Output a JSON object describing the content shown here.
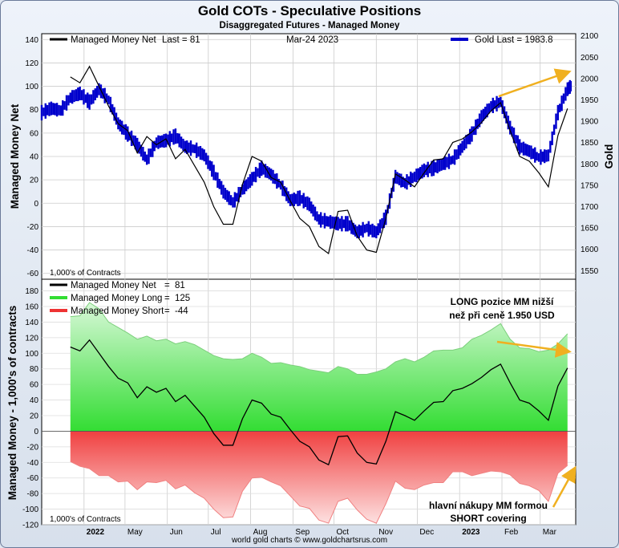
{
  "header": {
    "title": "Gold COTs - Speculative Positions",
    "subtitle": "Disaggregated Futures - Managed Money",
    "footer": "world gold charts © www.goldchartsrus.com"
  },
  "colors": {
    "net": "#000000",
    "gold": "#0000cc",
    "long": "#33dd33",
    "short": "#ee3333",
    "arrow": "#f0b020",
    "background": "#ffffff"
  },
  "chart_data": [
    {
      "type": "line",
      "title": "",
      "legend": [
        {
          "label": "Managed Money Net",
          "last_label": "Last = 81"
        },
        {
          "label": "Gold Last = 1983.8"
        }
      ],
      "date_label": "Mar-24  2023",
      "ylabel": "Managed Money Net",
      "y2label": "Gold",
      "units_note": "1,000's of Contracts",
      "ylim": [
        -65,
        145
      ],
      "y_ticks": [
        140,
        120,
        100,
        80,
        60,
        40,
        20,
        0,
        -20,
        -40,
        -60
      ],
      "y2lim": [
        1530,
        2105
      ],
      "y2_ticks": [
        2100,
        2050,
        2000,
        1950,
        1900,
        1850,
        1800,
        1750,
        1700,
        1650,
        1600,
        1550
      ],
      "series": [
        {
          "name": "Managed Money Net",
          "x": [
            "2022-03-22",
            "2022-03-29",
            "2022-04-05",
            "2022-04-12",
            "2022-04-19",
            "2022-04-26",
            "2022-05-03",
            "2022-05-10",
            "2022-05-17",
            "2022-05-24",
            "2022-05-31",
            "2022-06-07",
            "2022-06-14",
            "2022-06-21",
            "2022-06-28",
            "2022-07-05",
            "2022-07-12",
            "2022-07-19",
            "2022-07-26",
            "2022-08-02",
            "2022-08-09",
            "2022-08-16",
            "2022-08-23",
            "2022-08-30",
            "2022-09-06",
            "2022-09-13",
            "2022-09-20",
            "2022-09-27",
            "2022-10-04",
            "2022-10-11",
            "2022-10-18",
            "2022-10-25",
            "2022-11-01",
            "2022-11-08",
            "2022-11-15",
            "2022-11-22",
            "2022-11-29",
            "2022-12-06",
            "2022-12-13",
            "2022-12-20",
            "2022-12-27",
            "2023-01-03",
            "2023-01-10",
            "2023-01-17",
            "2023-01-24",
            "2023-01-31",
            "2023-02-07",
            "2023-02-14",
            "2023-02-21",
            "2023-02-28",
            "2023-03-07",
            "2023-03-14",
            "2023-03-21"
          ],
          "values": [
            108,
            103,
            117,
            100,
            83,
            68,
            62,
            43,
            57,
            50,
            55,
            38,
            46,
            32,
            18,
            -3,
            -18,
            -18,
            16,
            40,
            36,
            22,
            18,
            2,
            -13,
            -20,
            -37,
            -43,
            -7,
            -6,
            -28,
            -40,
            -42,
            -13,
            25,
            20,
            14,
            26,
            37,
            38,
            52,
            55,
            61,
            69,
            79,
            86,
            62,
            40,
            36,
            26,
            14,
            58,
            81
          ]
        },
        {
          "name": "Gold",
          "x": [
            "2022-03-01",
            "2022-03-08",
            "2022-03-15",
            "2022-03-22",
            "2022-03-29",
            "2022-04-05",
            "2022-04-12",
            "2022-04-19",
            "2022-04-26",
            "2022-05-03",
            "2022-05-10",
            "2022-05-17",
            "2022-05-24",
            "2022-05-31",
            "2022-06-07",
            "2022-06-14",
            "2022-06-21",
            "2022-06-28",
            "2022-07-05",
            "2022-07-12",
            "2022-07-19",
            "2022-07-26",
            "2022-08-02",
            "2022-08-09",
            "2022-08-16",
            "2022-08-23",
            "2022-08-30",
            "2022-09-06",
            "2022-09-13",
            "2022-09-20",
            "2022-09-27",
            "2022-10-04",
            "2022-10-11",
            "2022-10-18",
            "2022-10-25",
            "2022-11-01",
            "2022-11-08",
            "2022-11-15",
            "2022-11-22",
            "2022-11-29",
            "2022-12-06",
            "2022-12-13",
            "2022-12-20",
            "2022-12-27",
            "2023-01-03",
            "2023-01-10",
            "2023-01-17",
            "2023-01-24",
            "2023-01-31",
            "2023-02-07",
            "2023-02-14",
            "2023-02-21",
            "2023-02-28",
            "2023-03-07",
            "2023-03-14",
            "2023-03-21",
            "2023-03-24"
          ],
          "values": [
            1920,
            1930,
            1925,
            1955,
            1965,
            1945,
            1975,
            1950,
            1895,
            1870,
            1845,
            1810,
            1850,
            1855,
            1865,
            1840,
            1835,
            1820,
            1780,
            1735,
            1710,
            1740,
            1765,
            1790,
            1775,
            1750,
            1715,
            1720,
            1705,
            1670,
            1665,
            1660,
            1660,
            1640,
            1650,
            1640,
            1675,
            1770,
            1755,
            1770,
            1785,
            1790,
            1800,
            1810,
            1840,
            1870,
            1910,
            1935,
            1945,
            1885,
            1840,
            1830,
            1815,
            1820,
            1920,
            1975,
            1983.8
          ]
        }
      ]
    },
    {
      "type": "area",
      "title": "",
      "ylabel": "Managed Money - 1,000's of contracts",
      "units_note": "1,000's of Contracts",
      "ylim": [
        -120,
        195
      ],
      "y_ticks": [
        180,
        160,
        140,
        120,
        100,
        80,
        60,
        40,
        20,
        0,
        -20,
        -40,
        -60,
        -80,
        -100,
        -120
      ],
      "x_ticks": [
        "2022",
        "May",
        "Jun",
        "Jul",
        "Aug",
        "Sep",
        "Oct",
        "Nov",
        "Dec",
        "2023",
        "Feb",
        "Mar"
      ],
      "x_ticks_bold": [
        "2022",
        "2023"
      ],
      "series": [
        {
          "name": "Managed Money Net",
          "last": "81",
          "values": [
            108,
            103,
            117,
            100,
            83,
            68,
            62,
            43,
            57,
            50,
            55,
            38,
            46,
            32,
            18,
            -3,
            -18,
            -18,
            16,
            40,
            36,
            22,
            18,
            2,
            -13,
            -20,
            -37,
            -43,
            -7,
            -6,
            -28,
            -40,
            -42,
            -13,
            25,
            20,
            14,
            26,
            37,
            38,
            52,
            55,
            61,
            69,
            79,
            86,
            62,
            40,
            36,
            26,
            14,
            58,
            81
          ]
        },
        {
          "name": "Managed Money Long",
          "last": "125",
          "values": [
            147,
            148,
            165,
            157,
            140,
            133,
            126,
            118,
            122,
            116,
            118,
            112,
            115,
            111,
            104,
            97,
            93,
            92,
            93,
            100,
            95,
            87,
            88,
            85,
            83,
            79,
            77,
            75,
            83,
            80,
            73,
            73,
            76,
            80,
            89,
            93,
            89,
            95,
            103,
            104,
            104,
            107,
            118,
            123,
            130,
            138,
            118,
            107,
            106,
            102,
            104,
            112,
            125
          ]
        },
        {
          "name": "Managed Money Short",
          "last": "-44",
          "values": [
            -39,
            -45,
            -48,
            -57,
            -57,
            -65,
            -64,
            -75,
            -65,
            -66,
            -63,
            -74,
            -69,
            -79,
            -86,
            -100,
            -111,
            -110,
            -77,
            -60,
            -59,
            -65,
            -70,
            -83,
            -96,
            -99,
            -114,
            -118,
            -90,
            -86,
            -101,
            -113,
            -118,
            -93,
            -64,
            -73,
            -75,
            -69,
            -66,
            -66,
            -52,
            -52,
            -57,
            -54,
            -51,
            -52,
            -56,
            -67,
            -70,
            -76,
            -90,
            -54,
            -44
          ]
        }
      ],
      "annotations": [
        "LONG pozice MM nižší",
        "než při ceně 1.950 USD",
        "hlavní nákupy MM formou",
        "SHORT covering"
      ]
    }
  ]
}
